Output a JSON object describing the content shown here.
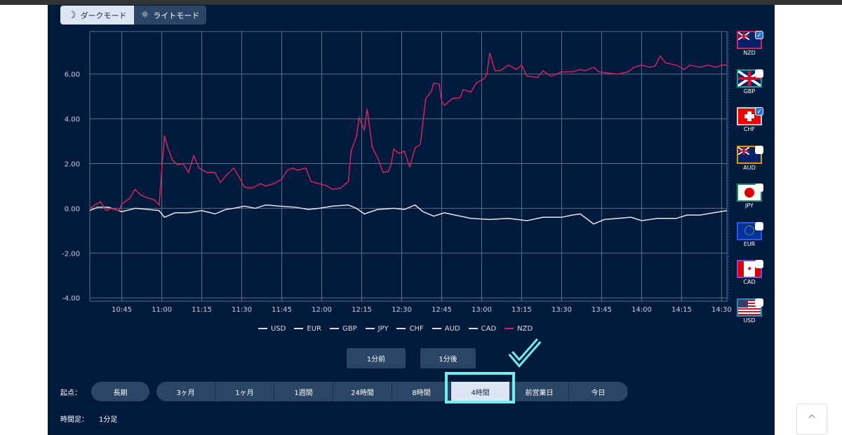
{
  "mode_toggle": {
    "dark": "ダークモード",
    "light": "ライトモード"
  },
  "flags": [
    {
      "code": "NZD",
      "checked": true,
      "border": "#d0245f"
    },
    {
      "code": "GBP",
      "checked": false,
      "border": "#13a38a"
    },
    {
      "code": "CHF",
      "checked": true,
      "border": "#cccccc"
    },
    {
      "code": "AUD",
      "checked": false,
      "border": "#d99a12"
    },
    {
      "code": "JPY",
      "checked": false,
      "border": "#159060"
    },
    {
      "code": "EUR",
      "checked": false,
      "border": "#2f55e0"
    },
    {
      "code": "CAD",
      "checked": false,
      "border": "#7a4fd0"
    },
    {
      "code": "USD",
      "checked": false,
      "border": "#2a8ab8"
    }
  ],
  "legend": [
    "USD",
    "EUR",
    "GBP",
    "JPY",
    "CHF",
    "AUD",
    "CAD",
    "NZD"
  ],
  "step": {
    "prev": "1分前",
    "next": "1分後"
  },
  "origin_label": "起点：",
  "long_term": "長期",
  "ranges": [
    "3ヶ月",
    "1ヶ月",
    "1週間",
    "24時間",
    "8時間",
    "4時間",
    "前営業日",
    "今日"
  ],
  "selected_range": "4時間",
  "timeframe_label": "時間足：",
  "timeframe_value": "1分足",
  "scroll_top_icon": "^",
  "chart_data": {
    "type": "line",
    "x_unit": "minutes after 10:00",
    "xlim": [
      33,
      272
    ],
    "ylim": [
      -4.15,
      7.9
    ],
    "yticks": [
      6,
      4,
      2,
      0,
      -2,
      -4
    ],
    "ytick_labels": [
      "6.00",
      "4.00",
      "2.00",
      "0.00",
      "-2.00",
      "-4.00"
    ],
    "xticks": [
      45,
      60,
      75,
      90,
      105,
      120,
      135,
      150,
      165,
      180,
      195,
      210,
      225,
      240,
      255,
      270
    ],
    "xtick_labels": [
      "10:45",
      "11:00",
      "11:15",
      "11:30",
      "11:45",
      "12:00",
      "12:15",
      "12:30",
      "12:45",
      "13:00",
      "13:15",
      "13:30",
      "13:45",
      "14:00",
      "14:15",
      "14:30"
    ],
    "grid": true,
    "legend_position": "bottom",
    "series": [
      {
        "name": "NZD",
        "color": "#d0245f",
        "points": [
          [
            33,
            0
          ],
          [
            35,
            0.15
          ],
          [
            37,
            0.3
          ],
          [
            39,
            -0.1
          ],
          [
            41,
            0
          ],
          [
            44,
            -0.1
          ],
          [
            45,
            0.2
          ],
          [
            48,
            0.45
          ],
          [
            50,
            0.85
          ],
          [
            52,
            0.6
          ],
          [
            55,
            0.45
          ],
          [
            57,
            0.4
          ],
          [
            59,
            0.15
          ],
          [
            61,
            3.25
          ],
          [
            62,
            2.8
          ],
          [
            64,
            2.15
          ],
          [
            66,
            1.95
          ],
          [
            68,
            2.0
          ],
          [
            70,
            1.6
          ],
          [
            72,
            2.35
          ],
          [
            74,
            1.8
          ],
          [
            77,
            1.6
          ],
          [
            80,
            1.6
          ],
          [
            82,
            1.15
          ],
          [
            84,
            1.45
          ],
          [
            87,
            1.8
          ],
          [
            89,
            1.4
          ],
          [
            91,
            0.95
          ],
          [
            94,
            0.9
          ],
          [
            97,
            1.1
          ],
          [
            99,
            1.0
          ],
          [
            102,
            1.1
          ],
          [
            105,
            1.3
          ],
          [
            107,
            1.7
          ],
          [
            109,
            1.8
          ],
          [
            111,
            1.7
          ],
          [
            114,
            1.8
          ],
          [
            116,
            1.2
          ],
          [
            119,
            1.1
          ],
          [
            122,
            1.0
          ],
          [
            124,
            0.85
          ],
          [
            127,
            0.9
          ],
          [
            130,
            1.2
          ],
          [
            131,
            2.55
          ],
          [
            133,
            3.2
          ],
          [
            134,
            4.05
          ],
          [
            136,
            3.5
          ],
          [
            137,
            4.45
          ],
          [
            139,
            2.7
          ],
          [
            141,
            2.25
          ],
          [
            143,
            1.6
          ],
          [
            145,
            1.65
          ],
          [
            146,
            1.95
          ],
          [
            147,
            2.65
          ],
          [
            149,
            2.45
          ],
          [
            151,
            2.55
          ],
          [
            153,
            1.85
          ],
          [
            155,
            2.7
          ],
          [
            157,
            2.85
          ],
          [
            159,
            4.9
          ],
          [
            161,
            5.2
          ],
          [
            162,
            5.6
          ],
          [
            164,
            5.55
          ],
          [
            165,
            4.8
          ],
          [
            166,
            4.6
          ],
          [
            169,
            4.9
          ],
          [
            172,
            4.95
          ],
          [
            173,
            5.3
          ],
          [
            176,
            5.2
          ],
          [
            178,
            5.6
          ],
          [
            181,
            5.8
          ],
          [
            182,
            6.0
          ],
          [
            183,
            6.95
          ],
          [
            185,
            6.15
          ],
          [
            187,
            6.15
          ],
          [
            190,
            6.4
          ],
          [
            193,
            6.2
          ],
          [
            195,
            6.4
          ],
          [
            197,
            5.9
          ],
          [
            201,
            5.85
          ],
          [
            203,
            6.15
          ],
          [
            206,
            5.9
          ],
          [
            210,
            6.1
          ],
          [
            214,
            6.1
          ],
          [
            217,
            6.2
          ],
          [
            219,
            6.15
          ],
          [
            222,
            6.3
          ],
          [
            224,
            6.1
          ],
          [
            227,
            6.05
          ],
          [
            231,
            6.0
          ],
          [
            235,
            6.1
          ],
          [
            237,
            6.3
          ],
          [
            240,
            6.4
          ],
          [
            243,
            6.3
          ],
          [
            245,
            6.35
          ],
          [
            247,
            6.8
          ],
          [
            249,
            6.5
          ],
          [
            253,
            6.4
          ],
          [
            256,
            6.2
          ],
          [
            258,
            6.4
          ],
          [
            262,
            6.3
          ],
          [
            265,
            6.4
          ],
          [
            268,
            6.3
          ],
          [
            270,
            6.4
          ],
          [
            272,
            6.4
          ]
        ]
      },
      {
        "name": "CHF",
        "color": "#e6e6e6",
        "points": [
          [
            33,
            -0.1
          ],
          [
            36,
            0.05
          ],
          [
            40,
            0.05
          ],
          [
            45,
            -0.15
          ],
          [
            50,
            0.0
          ],
          [
            55,
            -0.05
          ],
          [
            59,
            -0.1
          ],
          [
            61,
            -0.4
          ],
          [
            65,
            -0.2
          ],
          [
            70,
            -0.2
          ],
          [
            75,
            -0.1
          ],
          [
            80,
            -0.25
          ],
          [
            84,
            -0.05
          ],
          [
            87,
            0.0
          ],
          [
            91,
            0.1
          ],
          [
            95,
            0.0
          ],
          [
            99,
            0.15
          ],
          [
            104,
            0.1
          ],
          [
            110,
            0.05
          ],
          [
            115,
            -0.05
          ],
          [
            119,
            0.0
          ],
          [
            124,
            0.1
          ],
          [
            130,
            0.15
          ],
          [
            133,
            0.0
          ],
          [
            136,
            -0.25
          ],
          [
            141,
            -0.05
          ],
          [
            147,
            0.0
          ],
          [
            151,
            -0.05
          ],
          [
            155,
            0.15
          ],
          [
            158,
            -0.15
          ],
          [
            162,
            -0.35
          ],
          [
            166,
            -0.2
          ],
          [
            170,
            -0.3
          ],
          [
            176,
            -0.45
          ],
          [
            183,
            -0.5
          ],
          [
            190,
            -0.45
          ],
          [
            197,
            -0.55
          ],
          [
            203,
            -0.4
          ],
          [
            210,
            -0.4
          ],
          [
            214,
            -0.3
          ],
          [
            217,
            -0.25
          ],
          [
            222,
            -0.7
          ],
          [
            226,
            -0.5
          ],
          [
            231,
            -0.45
          ],
          [
            236,
            -0.4
          ],
          [
            240,
            -0.55
          ],
          [
            246,
            -0.45
          ],
          [
            253,
            -0.45
          ],
          [
            257,
            -0.3
          ],
          [
            262,
            -0.3
          ],
          [
            267,
            -0.2
          ],
          [
            272,
            -0.1
          ]
        ]
      }
    ]
  }
}
